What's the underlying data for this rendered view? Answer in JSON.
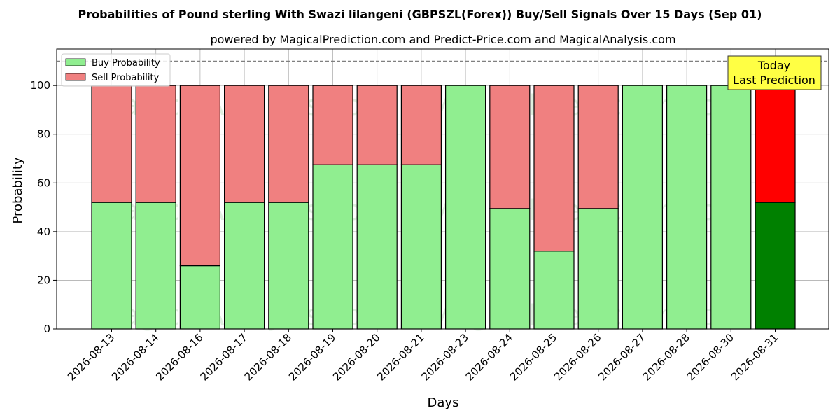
{
  "chart_data": {
    "type": "bar",
    "stacked": true,
    "title": "Probabilities of Pound sterling With Swazi lilangeni (GBPSZL(Forex)) Buy/Sell Signals Over 15 Days (Sep 01)",
    "subtitle": "powered by MagicalPrediction.com and Predict-Price.com and MagicalAnalysis.com",
    "xlabel": "Days",
    "ylabel": "Probability",
    "ylim": [
      0,
      115
    ],
    "yticks": [
      0,
      20,
      40,
      60,
      80,
      100
    ],
    "reference_line": 110,
    "grid": true,
    "legend_position": "top-left",
    "categories": [
      "2026-08-13",
      "2026-08-14",
      "2026-08-16",
      "2026-08-17",
      "2026-08-18",
      "2026-08-19",
      "2026-08-20",
      "2026-08-21",
      "2026-08-23",
      "2026-08-24",
      "2026-08-25",
      "2026-08-26",
      "2026-08-27",
      "2026-08-28",
      "2026-08-30",
      "2026-08-31"
    ],
    "series": [
      {
        "name": "Buy Probability",
        "color": "#90ee90",
        "highlight_color": "#008000",
        "values": [
          52,
          52,
          26,
          52,
          52,
          67.5,
          67.5,
          67.5,
          100,
          49.5,
          32,
          49.5,
          100,
          100,
          100,
          52
        ]
      },
      {
        "name": "Sell Probability",
        "color": "#f08080",
        "highlight_color": "#ff0000",
        "values": [
          48,
          48,
          74,
          48,
          48,
          32.5,
          32.5,
          32.5,
          0,
          50.5,
          68,
          50.5,
          0,
          0,
          0,
          48
        ]
      }
    ],
    "annotation": {
      "lines": [
        "Today",
        "Last Prediction"
      ],
      "background": "#ffff44"
    },
    "highlight_last": true,
    "watermarks": [
      "MagicalAnalysis.com",
      "MagicalPrediction.com"
    ]
  }
}
